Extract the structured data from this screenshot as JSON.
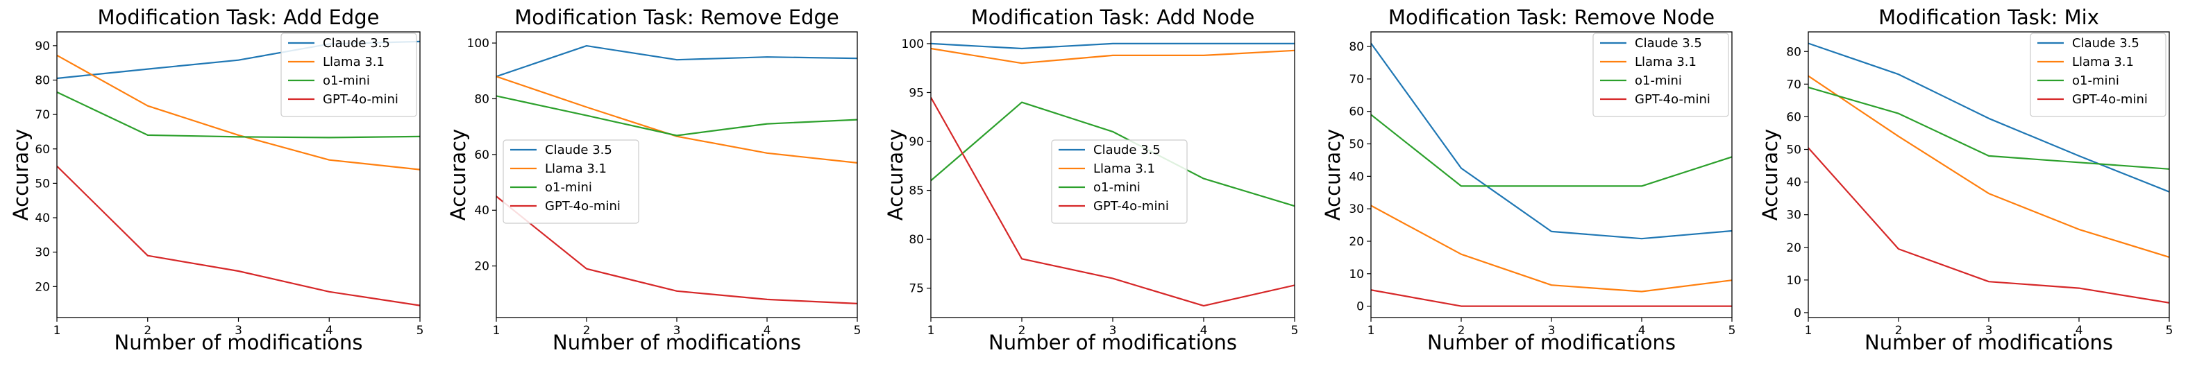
{
  "figure": {
    "colors": {
      "Claude 3.5": "#1f77b4",
      "Llama 3.1": "#ff7f0e",
      "o1-mini": "#2ca02c",
      "GPT-4o-mini": "#d62728"
    }
  },
  "chart_data": [
    {
      "type": "line",
      "title": "Modification Task: Add Edge",
      "xlabel": "Number of modifications",
      "ylabel": "Accuracy",
      "x": [
        1,
        2,
        3,
        4,
        5
      ],
      "xlim": [
        1,
        5
      ],
      "ylim": [
        11,
        94
      ],
      "yticks": [
        20,
        30,
        40,
        50,
        60,
        70,
        80,
        90
      ],
      "grid": false,
      "legend": "top-right",
      "series": [
        {
          "name": "Claude 3.5",
          "values": [
            80.5,
            83.2,
            85.8,
            90.5,
            91.2
          ]
        },
        {
          "name": "Llama 3.1",
          "values": [
            87.2,
            72.5,
            64.0,
            56.8,
            54.0
          ]
        },
        {
          "name": "o1-mini",
          "values": [
            76.5,
            64.0,
            63.5,
            63.3,
            63.6
          ]
        },
        {
          "name": "GPT-4o-mini",
          "values": [
            55.0,
            29.0,
            24.5,
            18.5,
            14.5
          ]
        }
      ]
    },
    {
      "type": "line",
      "title": "Modification Task: Remove Edge",
      "xlabel": "Number of modifications",
      "ylabel": "Accuracy",
      "x": [
        1,
        2,
        3,
        4,
        5
      ],
      "xlim": [
        1,
        5
      ],
      "ylim": [
        1.5,
        104
      ],
      "yticks": [
        20,
        40,
        60,
        80,
        100
      ],
      "grid": false,
      "legend": "center-left",
      "series": [
        {
          "name": "Claude 3.5",
          "values": [
            88.0,
            99.0,
            94.0,
            95.0,
            94.5
          ]
        },
        {
          "name": "Llama 3.1",
          "values": [
            88.0,
            77.0,
            66.5,
            60.5,
            57.0
          ]
        },
        {
          "name": "o1-mini",
          "values": [
            81.0,
            74.0,
            66.8,
            71.0,
            72.5
          ]
        },
        {
          "name": "GPT-4o-mini",
          "values": [
            45.0,
            19.0,
            11.0,
            8.0,
            6.5
          ]
        }
      ]
    },
    {
      "type": "line",
      "title": "Modification Task: Add Node",
      "xlabel": "Number of modifications",
      "ylabel": "Accuracy",
      "x": [
        1,
        2,
        3,
        4,
        5
      ],
      "xlim": [
        1,
        5
      ],
      "ylim": [
        72,
        101.2
      ],
      "yticks": [
        75,
        80,
        85,
        90,
        95,
        100
      ],
      "grid": false,
      "legend": "center",
      "series": [
        {
          "name": "Claude 3.5",
          "values": [
            100.0,
            99.5,
            100.0,
            100.0,
            100.0
          ]
        },
        {
          "name": "Llama 3.1",
          "values": [
            99.5,
            98.0,
            98.8,
            98.8,
            99.3
          ]
        },
        {
          "name": "o1-mini",
          "values": [
            86.0,
            94.0,
            91.0,
            86.2,
            83.4
          ]
        },
        {
          "name": "GPT-4o-mini",
          "values": [
            94.5,
            78.0,
            76.0,
            73.2,
            75.3
          ]
        }
      ]
    },
    {
      "type": "line",
      "title": "Modification Task: Remove Node",
      "xlabel": "Number of modifications",
      "ylabel": "Accuracy",
      "x": [
        1,
        2,
        3,
        4,
        5
      ],
      "xlim": [
        1,
        5
      ],
      "ylim": [
        -3.5,
        84.5
      ],
      "yticks": [
        0,
        10,
        20,
        30,
        40,
        50,
        60,
        70,
        80
      ],
      "grid": false,
      "legend": "top-right",
      "series": [
        {
          "name": "Claude 3.5",
          "values": [
            81.0,
            42.5,
            23.0,
            20.8,
            23.2
          ]
        },
        {
          "name": "Llama 3.1",
          "values": [
            31.0,
            16.0,
            6.5,
            4.5,
            8.0
          ]
        },
        {
          "name": "o1-mini",
          "values": [
            59.0,
            37.0,
            37.0,
            37.0,
            46.0
          ]
        },
        {
          "name": "GPT-4o-mini",
          "values": [
            5.0,
            0.0,
            0.0,
            0.0,
            0.0
          ]
        }
      ]
    },
    {
      "type": "line",
      "title": "Modification Task: Mix",
      "xlabel": "Number of modifications",
      "ylabel": "Accuracy",
      "x": [
        1,
        2,
        3,
        4,
        5
      ],
      "xlim": [
        1,
        5
      ],
      "ylim": [
        -1.5,
        86
      ],
      "yticks": [
        0,
        10,
        20,
        30,
        40,
        50,
        60,
        70,
        80
      ],
      "grid": false,
      "legend": "top-right",
      "series": [
        {
          "name": "Claude 3.5",
          "values": [
            82.5,
            73.0,
            59.5,
            48.0,
            37.0
          ]
        },
        {
          "name": "Llama 3.1",
          "values": [
            72.5,
            54.0,
            36.5,
            25.5,
            17.0
          ]
        },
        {
          "name": "o1-mini",
          "values": [
            69.0,
            61.0,
            48.0,
            46.0,
            44.0
          ]
        },
        {
          "name": "GPT-4o-mini",
          "values": [
            50.5,
            19.5,
            9.5,
            7.5,
            3.0
          ]
        }
      ]
    }
  ]
}
